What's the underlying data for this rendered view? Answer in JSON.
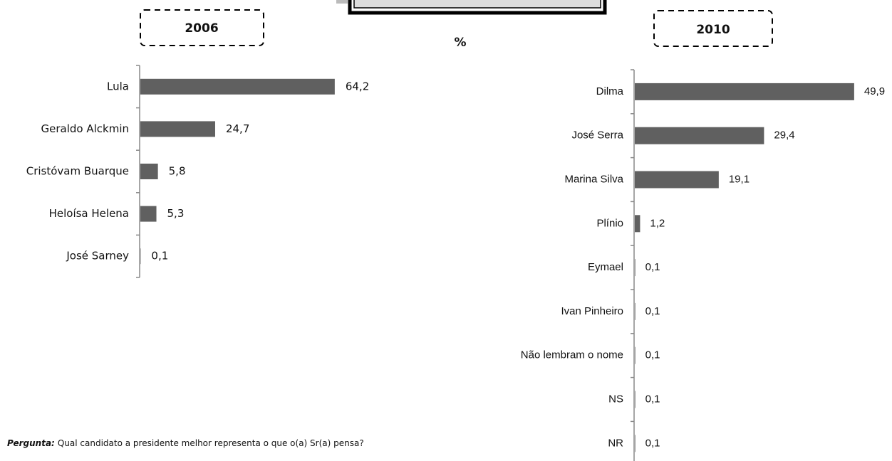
{
  "chart_data": [
    {
      "type": "bar",
      "orientation": "horizontal",
      "title": "2006",
      "categories": [
        "Lula",
        "Geraldo Alckmin",
        "Cristóvam Buarque",
        "Heloísa Helena",
        "José Sarney"
      ],
      "values": [
        64.2,
        24.7,
        5.8,
        5.3,
        0.1
      ],
      "value_labels": [
        "64,2",
        "24,7",
        "5,8",
        "5,3",
        "0,1"
      ],
      "color": "#606060"
    },
    {
      "type": "bar",
      "orientation": "horizontal",
      "title": "2010",
      "categories": [
        "Dilma",
        "José Serra",
        "Marina Silva",
        "Plínio",
        "Eymael",
        "Ivan Pinheiro",
        "Não lembram o nome",
        "NS",
        "NR"
      ],
      "values": [
        49.9,
        29.4,
        19.1,
        1.2,
        0.1,
        0.1,
        0.1,
        0.1,
        0.1
      ],
      "value_labels": [
        "49,9",
        "29,4",
        "19,1",
        "1,2",
        "0,1",
        "0,1",
        "0,1",
        "0,1",
        "0,1"
      ],
      "color": "#606060"
    }
  ],
  "unit_label": "%",
  "question": {
    "label": "Pergunta:",
    "text": "Qual candidato a presidente melhor representa o que o(a) Sr(a) pensa?"
  }
}
